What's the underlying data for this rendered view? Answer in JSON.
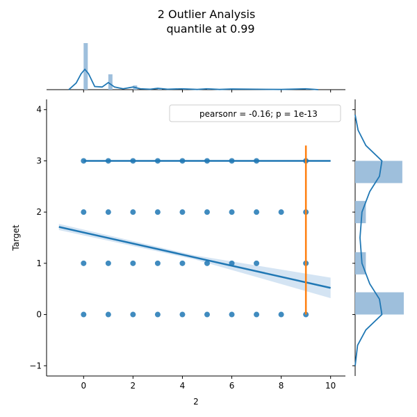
{
  "title_line1": "2 Outlier Analysis",
  "title_line2": "quantile at 0.99",
  "colors": {
    "primary": "#1f77b4",
    "secondary": "#ff7f0e",
    "hist_fill": "#9ebfdc",
    "ci_band": "#c6dbef"
  },
  "chart_data": {
    "type": "scatter",
    "xlabel": "2",
    "ylabel": "Target",
    "xlim": [
      -1.5,
      10.6
    ],
    "ylim": [
      -1.2,
      4.2
    ],
    "xticks": [
      "0",
      "2",
      "4",
      "6",
      "8",
      "10"
    ],
    "yticks": [
      "−1",
      "0",
      "1",
      "2",
      "3",
      "4"
    ],
    "legend": {
      "text": "pearsonr = -0.16; p = 1e-13",
      "position": "top-right"
    },
    "points": {
      "y3": [
        0,
        1,
        2,
        3,
        4,
        5,
        6,
        7,
        9
      ],
      "y2": [
        0,
        1,
        2,
        3,
        4,
        5,
        6,
        7,
        8,
        9
      ],
      "y1": [
        0,
        1,
        2,
        3,
        4,
        5,
        6,
        7,
        9
      ],
      "y0": [
        0,
        1,
        2,
        3,
        4,
        5,
        6,
        7,
        8,
        9
      ]
    },
    "regression_main": {
      "x": [
        -1,
        10
      ],
      "y": [
        1.71,
        0.52
      ],
      "ci_half_width": [
        0.06,
        0.2
      ]
    },
    "regression_y3": {
      "x": [
        0,
        10
      ],
      "y": [
        3.0,
        3.0
      ]
    },
    "vertical_line": {
      "x": 9,
      "y": [
        0.0,
        3.3
      ]
    },
    "marginal_x": {
      "bins": [
        0,
        1,
        2,
        3,
        4,
        5,
        6,
        7,
        8,
        9
      ],
      "heights": [
        1.0,
        0.33,
        0.09,
        0.03,
        0.02,
        0.02,
        0.01,
        0.01,
        0.005,
        0.02
      ],
      "kde": [
        [
          -0.6,
          0.0
        ],
        [
          -0.3,
          0.15
        ],
        [
          -0.1,
          0.36
        ],
        [
          0.05,
          0.46
        ],
        [
          0.2,
          0.36
        ],
        [
          0.45,
          0.07
        ],
        [
          0.75,
          0.06
        ],
        [
          1.0,
          0.16
        ],
        [
          1.25,
          0.06
        ],
        [
          1.6,
          0.02
        ],
        [
          2.0,
          0.06
        ],
        [
          2.3,
          0.02
        ],
        [
          2.7,
          0.01
        ],
        [
          3.0,
          0.03
        ],
        [
          3.4,
          0.01
        ],
        [
          4.0,
          0.02
        ],
        [
          4.6,
          0.005
        ],
        [
          5.0,
          0.02
        ],
        [
          5.5,
          0.005
        ],
        [
          6.0,
          0.015
        ],
        [
          7.0,
          0.01
        ],
        [
          8.0,
          0.005
        ],
        [
          9.0,
          0.02
        ],
        [
          9.5,
          0.0
        ]
      ]
    },
    "marginal_y": {
      "bins": [
        0,
        1,
        2,
        3
      ],
      "heights": [
        1.0,
        0.22,
        0.22,
        0.97
      ],
      "kde": [
        [
          -1.0,
          0.0
        ],
        [
          -0.6,
          0.05
        ],
        [
          -0.3,
          0.22
        ],
        [
          0.0,
          0.55
        ],
        [
          0.3,
          0.5
        ],
        [
          0.6,
          0.3
        ],
        [
          1.0,
          0.14
        ],
        [
          1.5,
          0.1
        ],
        [
          2.0,
          0.14
        ],
        [
          2.4,
          0.3
        ],
        [
          2.7,
          0.5
        ],
        [
          3.0,
          0.55
        ],
        [
          3.3,
          0.22
        ],
        [
          3.6,
          0.06
        ],
        [
          3.9,
          0.0
        ]
      ]
    }
  }
}
